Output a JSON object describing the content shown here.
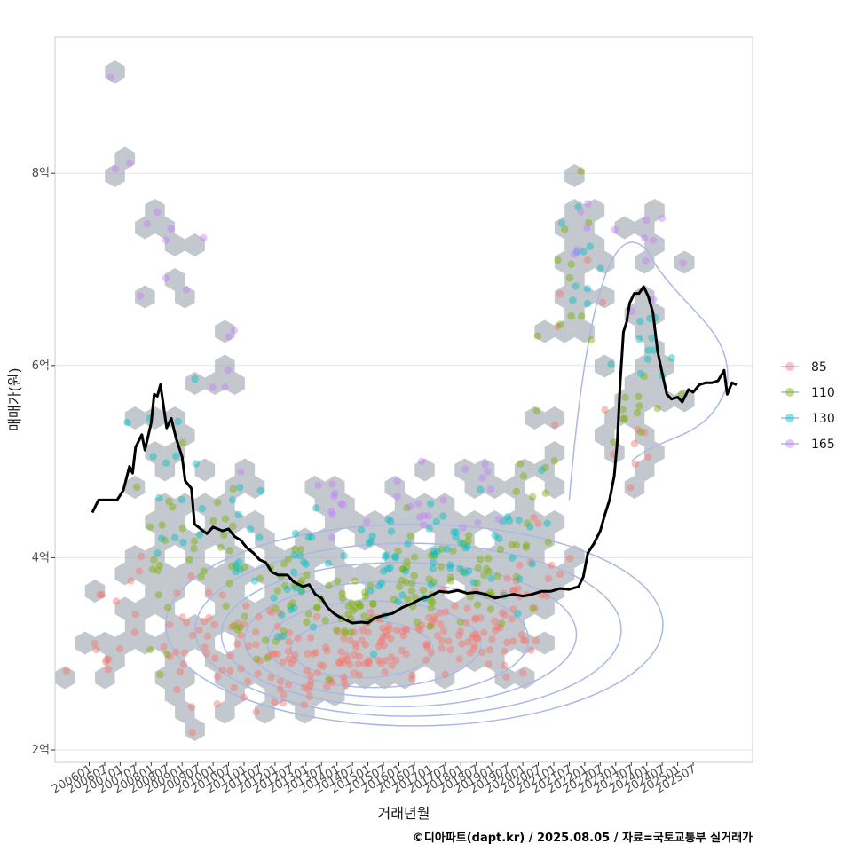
{
  "chart_data": {
    "type": "scatter",
    "xlabel": "거래년월",
    "ylabel": "매매가(원)",
    "caption": "©디아파트(dapt.kr) / 2025.08.05 / 자료=국토교통부 실거래가",
    "x_range": [
      "2006-01",
      "2025-08"
    ],
    "ylim": [
      1.95,
      9.5
    ],
    "y_ticks": [
      {
        "value": 2,
        "label": "2억"
      },
      {
        "value": 4,
        "label": "4억"
      },
      {
        "value": 6,
        "label": "6억"
      },
      {
        "value": 8,
        "label": "8억"
      }
    ],
    "x_ticks": [
      "200601",
      "200607",
      "200701",
      "200707",
      "200801",
      "200807",
      "200901",
      "200907",
      "201001",
      "201007",
      "201101",
      "201107",
      "201201",
      "201207",
      "201301",
      "201307",
      "201401",
      "201407",
      "201501",
      "201507",
      "201601",
      "201607",
      "201701",
      "201707",
      "201801",
      "201807",
      "201901",
      "201907",
      "202001",
      "202007",
      "202101",
      "202107",
      "202201",
      "202207",
      "202301",
      "202307",
      "202401",
      "202407",
      "202501",
      "202507"
    ],
    "grid": true,
    "legend_position": "right",
    "colors": {
      "85": "#f8766d",
      "110": "#7cae00",
      "130": "#00bfc4",
      "165": "#c77cff",
      "hex": "#9aa3ab",
      "contour": "#aab8e6",
      "trend": "#000000",
      "panel_border": "#cccccc",
      "grid": "#e5e5e5"
    },
    "series": [
      {
        "name": "85",
        "centers": [
          {
            "x": 2006.4,
            "y": 2.9,
            "spread": 0.15,
            "n": 6
          },
          {
            "x": 2007.0,
            "y": 3.5,
            "spread": 0.4,
            "n": 10
          },
          {
            "x": 2009.5,
            "y": 3.1,
            "spread": 0.35,
            "n": 25
          },
          {
            "x": 2011.0,
            "y": 3.0,
            "spread": 0.3,
            "n": 25
          },
          {
            "x": 2012.5,
            "y": 2.8,
            "spread": 0.25,
            "n": 30
          },
          {
            "x": 2014.0,
            "y": 2.95,
            "spread": 0.2,
            "n": 35
          },
          {
            "x": 2015.5,
            "y": 3.15,
            "spread": 0.2,
            "n": 35
          },
          {
            "x": 2017.0,
            "y": 3.2,
            "spread": 0.2,
            "n": 30
          },
          {
            "x": 2018.5,
            "y": 3.2,
            "spread": 0.2,
            "n": 30
          },
          {
            "x": 2019.8,
            "y": 3.4,
            "spread": 0.3,
            "n": 20
          },
          {
            "x": 2020.6,
            "y": 3.9,
            "spread": 0.3,
            "n": 12
          },
          {
            "x": 2021.6,
            "y": 6.4,
            "spread": 0.3,
            "n": 5
          },
          {
            "x": 2023.5,
            "y": 5.1,
            "spread": 0.3,
            "n": 8
          }
        ]
      },
      {
        "name": "110",
        "centers": [
          {
            "x": 2008.5,
            "y": 4.1,
            "spread": 0.5,
            "n": 20
          },
          {
            "x": 2010.5,
            "y": 3.9,
            "spread": 0.35,
            "n": 20
          },
          {
            "x": 2012.5,
            "y": 3.5,
            "spread": 0.3,
            "n": 25
          },
          {
            "x": 2014.5,
            "y": 3.5,
            "spread": 0.25,
            "n": 30
          },
          {
            "x": 2016.5,
            "y": 3.7,
            "spread": 0.25,
            "n": 30
          },
          {
            "x": 2018.5,
            "y": 3.7,
            "spread": 0.25,
            "n": 25
          },
          {
            "x": 2020.2,
            "y": 4.3,
            "spread": 0.5,
            "n": 15
          },
          {
            "x": 2021.7,
            "y": 6.8,
            "spread": 0.5,
            "n": 12
          },
          {
            "x": 2023.8,
            "y": 5.5,
            "spread": 0.3,
            "n": 12
          }
        ]
      },
      {
        "name": "130",
        "centers": [
          {
            "x": 2008.8,
            "y": 4.9,
            "spread": 0.5,
            "n": 15
          },
          {
            "x": 2010.8,
            "y": 4.3,
            "spread": 0.3,
            "n": 12
          },
          {
            "x": 2013.0,
            "y": 3.8,
            "spread": 0.3,
            "n": 20
          },
          {
            "x": 2015.5,
            "y": 4.0,
            "spread": 0.25,
            "n": 25
          },
          {
            "x": 2017.5,
            "y": 4.0,
            "spread": 0.25,
            "n": 25
          },
          {
            "x": 2019.5,
            "y": 4.2,
            "spread": 0.35,
            "n": 15
          },
          {
            "x": 2021.8,
            "y": 7.1,
            "spread": 0.4,
            "n": 10
          },
          {
            "x": 2024.0,
            "y": 6.0,
            "spread": 0.3,
            "n": 12
          }
        ]
      },
      {
        "name": "165",
        "centers": [
          {
            "x": 2007.6,
            "y": 7.7,
            "spread": 0.3,
            "n": 4
          },
          {
            "x": 2008.8,
            "y": 6.9,
            "spread": 0.5,
            "n": 6
          },
          {
            "x": 2010.5,
            "y": 5.8,
            "spread": 0.5,
            "n": 6
          },
          {
            "x": 2014.0,
            "y": 4.5,
            "spread": 0.3,
            "n": 10
          },
          {
            "x": 2016.5,
            "y": 4.6,
            "spread": 0.3,
            "n": 10
          },
          {
            "x": 2019.0,
            "y": 4.6,
            "spread": 0.3,
            "n": 8
          },
          {
            "x": 2021.8,
            "y": 7.6,
            "spread": 0.3,
            "n": 6
          },
          {
            "x": 2024.3,
            "y": 7.2,
            "spread": 0.4,
            "n": 8
          }
        ],
        "extra_points": [
          {
            "x": 2006.7,
            "y": 9.0
          }
        ]
      }
    ],
    "trend_line": [
      [
        2006.1,
        4.47
      ],
      [
        2006.3,
        4.6
      ],
      [
        2006.9,
        4.6
      ],
      [
        2007.1,
        4.7
      ],
      [
        2007.3,
        4.95
      ],
      [
        2007.4,
        4.88
      ],
      [
        2007.5,
        5.15
      ],
      [
        2007.7,
        5.28
      ],
      [
        2007.8,
        5.12
      ],
      [
        2008.0,
        5.4
      ],
      [
        2008.1,
        5.7
      ],
      [
        2008.2,
        5.68
      ],
      [
        2008.3,
        5.8
      ],
      [
        2008.5,
        5.35
      ],
      [
        2008.65,
        5.45
      ],
      [
        2008.8,
        5.25
      ],
      [
        2009.0,
        5.05
      ],
      [
        2009.1,
        4.8
      ],
      [
        2009.3,
        4.72
      ],
      [
        2009.4,
        4.35
      ],
      [
        2009.6,
        4.3
      ],
      [
        2009.8,
        4.25
      ],
      [
        2010.0,
        4.32
      ],
      [
        2010.3,
        4.28
      ],
      [
        2010.5,
        4.3
      ],
      [
        2010.7,
        4.22
      ],
      [
        2010.9,
        4.18
      ],
      [
        2011.1,
        4.1
      ],
      [
        2011.3,
        4.05
      ],
      [
        2011.5,
        3.98
      ],
      [
        2011.7,
        3.95
      ],
      [
        2011.9,
        3.85
      ],
      [
        2012.1,
        3.82
      ],
      [
        2012.4,
        3.82
      ],
      [
        2012.6,
        3.75
      ],
      [
        2012.9,
        3.7
      ],
      [
        2013.1,
        3.72
      ],
      [
        2013.3,
        3.62
      ],
      [
        2013.5,
        3.58
      ],
      [
        2013.7,
        3.48
      ],
      [
        2013.9,
        3.42
      ],
      [
        2014.1,
        3.38
      ],
      [
        2014.3,
        3.35
      ],
      [
        2014.5,
        3.32
      ],
      [
        2014.8,
        3.33
      ],
      [
        2015.0,
        3.32
      ],
      [
        2015.2,
        3.37
      ],
      [
        2015.5,
        3.4
      ],
      [
        2015.8,
        3.42
      ],
      [
        2016.1,
        3.48
      ],
      [
        2016.4,
        3.52
      ],
      [
        2016.7,
        3.57
      ],
      [
        2017.0,
        3.6
      ],
      [
        2017.3,
        3.65
      ],
      [
        2017.6,
        3.64
      ],
      [
        2017.9,
        3.66
      ],
      [
        2018.2,
        3.63
      ],
      [
        2018.5,
        3.64
      ],
      [
        2018.8,
        3.62
      ],
      [
        2019.1,
        3.58
      ],
      [
        2019.4,
        3.6
      ],
      [
        2019.7,
        3.62
      ],
      [
        2020.0,
        3.6
      ],
      [
        2020.3,
        3.62
      ],
      [
        2020.6,
        3.65
      ],
      [
        2020.9,
        3.65
      ],
      [
        2021.2,
        3.68
      ],
      [
        2021.5,
        3.67
      ],
      [
        2021.8,
        3.7
      ],
      [
        2021.95,
        3.8
      ],
      [
        2022.1,
        4.05
      ],
      [
        2022.3,
        4.15
      ],
      [
        2022.5,
        4.28
      ],
      [
        2022.65,
        4.45
      ],
      [
        2022.8,
        4.6
      ],
      [
        2022.95,
        4.85
      ],
      [
        2023.05,
        5.2
      ],
      [
        2023.15,
        5.85
      ],
      [
        2023.25,
        6.35
      ],
      [
        2023.35,
        6.45
      ],
      [
        2023.45,
        6.65
      ],
      [
        2023.6,
        6.75
      ],
      [
        2023.75,
        6.75
      ],
      [
        2023.9,
        6.82
      ],
      [
        2024.05,
        6.72
      ],
      [
        2024.2,
        6.55
      ],
      [
        2024.35,
        6.15
      ],
      [
        2024.5,
        5.92
      ],
      [
        2024.65,
        5.7
      ],
      [
        2024.8,
        5.65
      ],
      [
        2025.0,
        5.67
      ],
      [
        2025.15,
        5.62
      ],
      [
        2025.35,
        5.75
      ],
      [
        2025.5,
        5.72
      ],
      [
        2025.7,
        5.8
      ],
      [
        2025.9,
        5.82
      ],
      [
        2026.1,
        5.82
      ],
      [
        2026.3,
        5.84
      ],
      [
        2026.5,
        5.95
      ],
      [
        2026.6,
        5.7
      ],
      [
        2026.75,
        5.82
      ],
      [
        2026.9,
        5.8
      ]
    ]
  }
}
